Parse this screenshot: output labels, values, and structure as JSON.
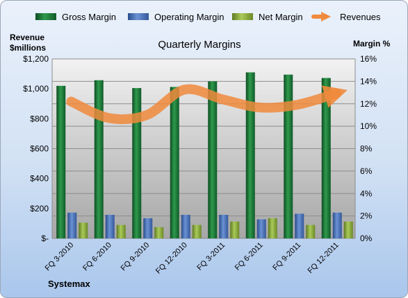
{
  "chart_data": {
    "type": "bar",
    "title": "Quarterly Margins",
    "categories": [
      "FQ 3-2010",
      "FQ 6-2010",
      "FQ 9-2010",
      "FQ 12-2010",
      "FQ 3-2011",
      "FQ 6-2011",
      "FQ 9-2011",
      "FQ 12-2011"
    ],
    "y_left": {
      "title_lines": [
        "Revenue",
        "$millions"
      ],
      "range": [
        0,
        1200
      ],
      "tick_labels": [
        "$-",
        "$200",
        "$400",
        "$600",
        "$800",
        "$1,000",
        "$1,200"
      ]
    },
    "y_right": {
      "title": "Margin %",
      "range": [
        0,
        16
      ],
      "tick_labels": [
        "0%",
        "2%",
        "4%",
        "6%",
        "8%",
        "10%",
        "12%",
        "14%",
        "16%"
      ]
    },
    "grid": true,
    "legend_position": "top",
    "series": [
      {
        "name": "Gross Margin",
        "type": "bar",
        "axis": "right",
        "color": "#1f7a3a",
        "values": [
          13.6,
          14.1,
          13.4,
          13.5,
          14.0,
          14.8,
          14.6,
          14.3
        ]
      },
      {
        "name": "Operating Margin",
        "type": "bar",
        "axis": "right",
        "color": "#4a72b8",
        "values": [
          2.3,
          2.1,
          1.8,
          2.1,
          2.1,
          1.7,
          2.2,
          2.3
        ]
      },
      {
        "name": "Net Margin",
        "type": "bar",
        "axis": "right",
        "color": "#8cad3a",
        "values": [
          1.4,
          1.2,
          1.0,
          1.2,
          1.5,
          1.8,
          1.2,
          1.5
        ]
      },
      {
        "name": "Revenues",
        "type": "line",
        "axis": "left",
        "color": "#f08a3c",
        "values": [
          915,
          805,
          825,
          995,
          930,
          875,
          895,
          970
        ]
      }
    ]
  },
  "company_label": "Systemax"
}
